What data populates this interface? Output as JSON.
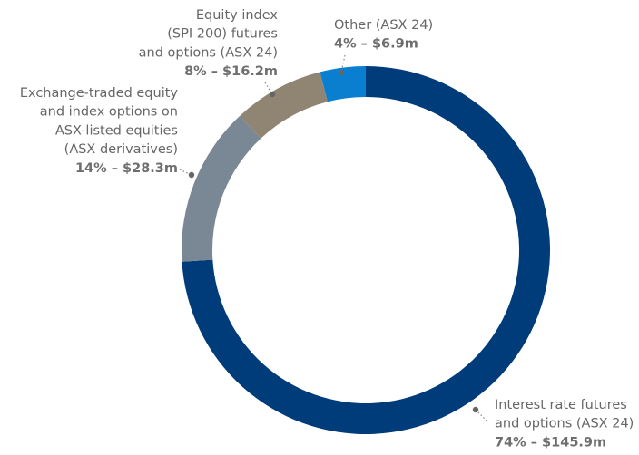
{
  "chart_data": {
    "type": "donut",
    "categories": [
      [
        "Interest rate futures",
        "and options (ASX 24)"
      ],
      [
        "Exchange-traded equity",
        "and index options on",
        "ASX-listed equities",
        "(ASX derivatives)"
      ],
      [
        "Equity index",
        "(SPI 200) futures",
        "and options (ASX 24)"
      ],
      [
        "Other (ASX 24)"
      ]
    ],
    "values": [
      74,
      14,
      8,
      4
    ],
    "value_labels": [
      "74% – $145.9m",
      "14% – $28.3m",
      "8% – $16.2m",
      "4% – $6.9m"
    ],
    "colors": [
      "#003b7a",
      "#7a8795",
      "#8f8572",
      "#0b7fcf"
    ]
  }
}
